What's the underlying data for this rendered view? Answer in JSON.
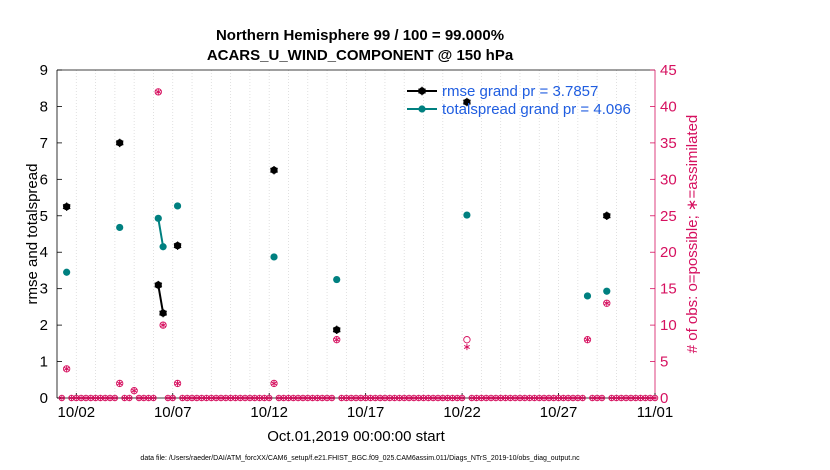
{
  "chart_data": {
    "type": "scatter",
    "title_line1": "Northern Hemisphere 99 / 100 = 99.000%",
    "title_line2": "ACARS_U_WIND_COMPONENT @ 150 hPa",
    "xlabel": "Oct.01,2019 00:00:00 start",
    "ylabel_left": "rmse and totalspread",
    "ylabel_right": "# of obs: o=possible; ∗=assimilated",
    "footer": "data file: /Users/raeder/DAI/ATM_forcXX/CAM6_setup/f.e21.FHIST_BGC.f09_025.CAM6assim.011/Diags_NTrS_2019-10/obs_diag_output.nc",
    "xlim": [
      0.5,
      31.5
    ],
    "ylim_left": [
      0,
      9
    ],
    "ylim_right": [
      0,
      45
    ],
    "x_ticks": [
      {
        "x": 1.5,
        "label": "10/02"
      },
      {
        "x": 6.5,
        "label": "10/07"
      },
      {
        "x": 11.5,
        "label": "10/12"
      },
      {
        "x": 16.5,
        "label": "10/17"
      },
      {
        "x": 21.5,
        "label": "10/22"
      },
      {
        "x": 26.5,
        "label": "10/27"
      },
      {
        "x": 31.5,
        "label": "11/01"
      }
    ],
    "y_ticks_left": [
      0,
      1,
      2,
      3,
      4,
      5,
      6,
      7,
      8,
      9
    ],
    "y_ticks_right": [
      0,
      5,
      10,
      15,
      20,
      25,
      30,
      35,
      40,
      45
    ],
    "colors": {
      "rmse": "#000000",
      "totalspread": "#008080",
      "obs": "#d6105f",
      "axis": "#000000",
      "grid": "#d9d9d9"
    },
    "legend": [
      {
        "name": "rmse",
        "label": "rmse grand pr = 3.7857",
        "color": "#000000"
      },
      {
        "name": "totalspread",
        "label": "totalspread grand pr = 4.096",
        "color": "#008080"
      }
    ],
    "series": [
      {
        "name": "rmse",
        "segments": [
          [
            [
              1.0,
              5.25
            ]
          ],
          [
            [
              3.75,
              7.0
            ]
          ],
          [
            [
              5.75,
              3.1
            ],
            [
              6.0,
              2.33
            ]
          ],
          [
            [
              6.75,
              4.18
            ]
          ],
          [
            [
              11.75,
              6.25
            ]
          ],
          [
            [
              15.0,
              1.87
            ]
          ],
          [
            [
              21.75,
              8.12
            ]
          ],
          [
            [
              29.0,
              5.0
            ]
          ]
        ]
      },
      {
        "name": "totalspread",
        "segments": [
          [
            [
              1.0,
              3.45
            ]
          ],
          [
            [
              3.75,
              4.68
            ]
          ],
          [
            [
              5.75,
              4.93
            ],
            [
              6.0,
              4.15
            ]
          ],
          [
            [
              6.75,
              5.27
            ]
          ],
          [
            [
              11.75,
              3.87
            ]
          ],
          [
            [
              15.0,
              3.25
            ]
          ],
          [
            [
              21.75,
              5.02
            ]
          ],
          [
            [
              28.0,
              2.8
            ]
          ],
          [
            [
              29.0,
              2.93
            ]
          ]
        ]
      }
    ],
    "obs_possible": [
      {
        "x": 1.0,
        "n": 4
      },
      {
        "x": 3.75,
        "n": 2
      },
      {
        "x": 4.5,
        "n": 1
      },
      {
        "x": 5.75,
        "n": 42
      },
      {
        "x": 6.0,
        "n": 10
      },
      {
        "x": 6.75,
        "n": 2
      },
      {
        "x": 11.75,
        "n": 2
      },
      {
        "x": 15.0,
        "n": 8
      },
      {
        "x": 21.75,
        "n": 8
      },
      {
        "x": 28.0,
        "n": 8
      },
      {
        "x": 29.0,
        "n": 13
      }
    ],
    "obs_assimilated": [
      {
        "x": 1.0,
        "n": 4
      },
      {
        "x": 3.75,
        "n": 2
      },
      {
        "x": 4.5,
        "n": 1
      },
      {
        "x": 5.75,
        "n": 42
      },
      {
        "x": 6.0,
        "n": 10
      },
      {
        "x": 6.75,
        "n": 2
      },
      {
        "x": 11.75,
        "n": 2
      },
      {
        "x": 15.0,
        "n": 8
      },
      {
        "x": 21.75,
        "n": 7
      },
      {
        "x": 28.0,
        "n": 8
      },
      {
        "x": 29.0,
        "n": 13
      }
    ],
    "zero_obs_spacing_days": 0.25
  }
}
